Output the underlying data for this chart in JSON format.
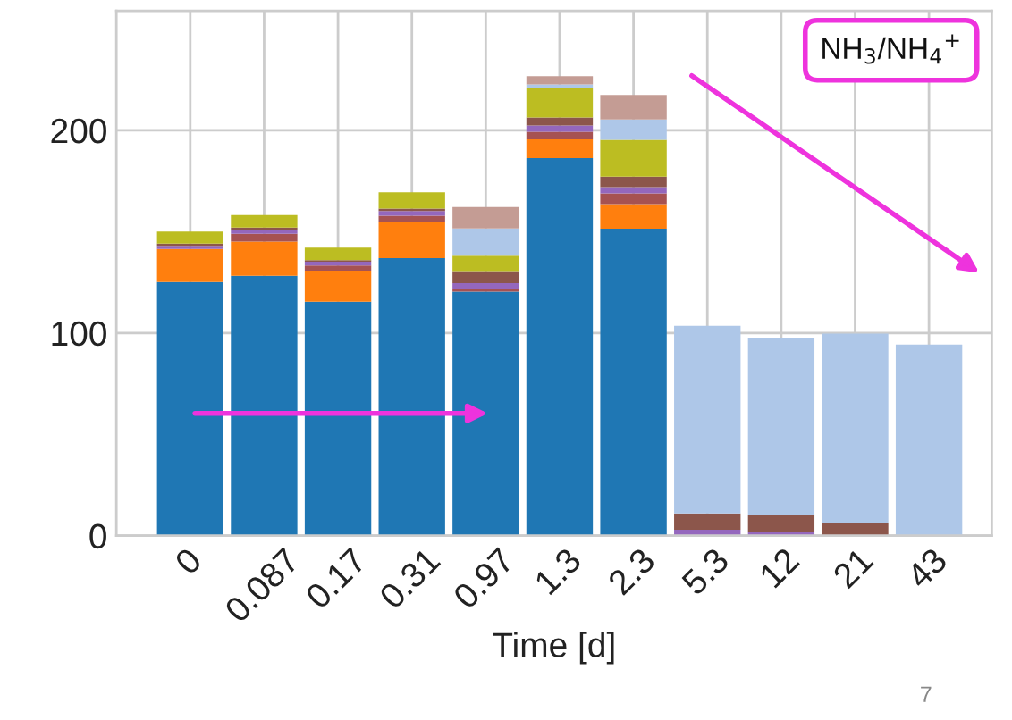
{
  "chart_data": {
    "type": "bar",
    "stacked": true,
    "xlabel": "Time [d]",
    "categories": [
      "0",
      "0.087",
      "0.17",
      "0.31",
      "0.97",
      "1.3",
      "2.3",
      "5.3",
      "12",
      "21",
      "43"
    ],
    "series": [
      {
        "color": "#1f77b4",
        "values": [
          125.1,
          128.2,
          115.4,
          136.9,
          120.4,
          186.3,
          151.5,
          0,
          0,
          0,
          0
        ]
      },
      {
        "color": "#ff7f0e",
        "values": [
          16.4,
          16.9,
          15.4,
          18.1,
          0,
          9.3,
          12.1,
          0,
          0,
          0,
          0
        ]
      },
      {
        "color": "#a65252",
        "values": [
          0,
          3.8,
          2.5,
          2.9,
          1.3,
          3.7,
          5.3,
          0,
          0,
          0,
          0
        ]
      },
      {
        "color": "#9467bd",
        "values": [
          1.5,
          1.8,
          1.9,
          2.3,
          2.9,
          3.1,
          3.1,
          2.9,
          1.8,
          0,
          0
        ]
      },
      {
        "color": "#8c564b",
        "values": [
          1.1,
          1.3,
          0.7,
          1.2,
          5.9,
          4.0,
          5.2,
          8.1,
          8.5,
          6.3,
          0
        ]
      },
      {
        "color": "#bcbd22",
        "values": [
          6.0,
          6.2,
          6.2,
          8.1,
          7.6,
          14.4,
          18.1,
          0,
          0,
          0,
          0
        ]
      },
      {
        "color": "#aec7e8",
        "values": [
          0,
          0,
          0,
          0,
          13.5,
          1.9,
          10.1,
          92.5,
          87.4,
          93.4,
          94.3
        ]
      },
      {
        "color": "#c49c94",
        "values": [
          0,
          0,
          0,
          0,
          10.6,
          4.1,
          12.1,
          0,
          0,
          0,
          0
        ]
      }
    ],
    "ylim": [
      0,
      259
    ],
    "yticks": [
      0,
      100,
      200
    ],
    "grid": true,
    "annotations": [
      "NH$_{3}$/NH$_{4}$$^{+}$",
      "7"
    ]
  }
}
